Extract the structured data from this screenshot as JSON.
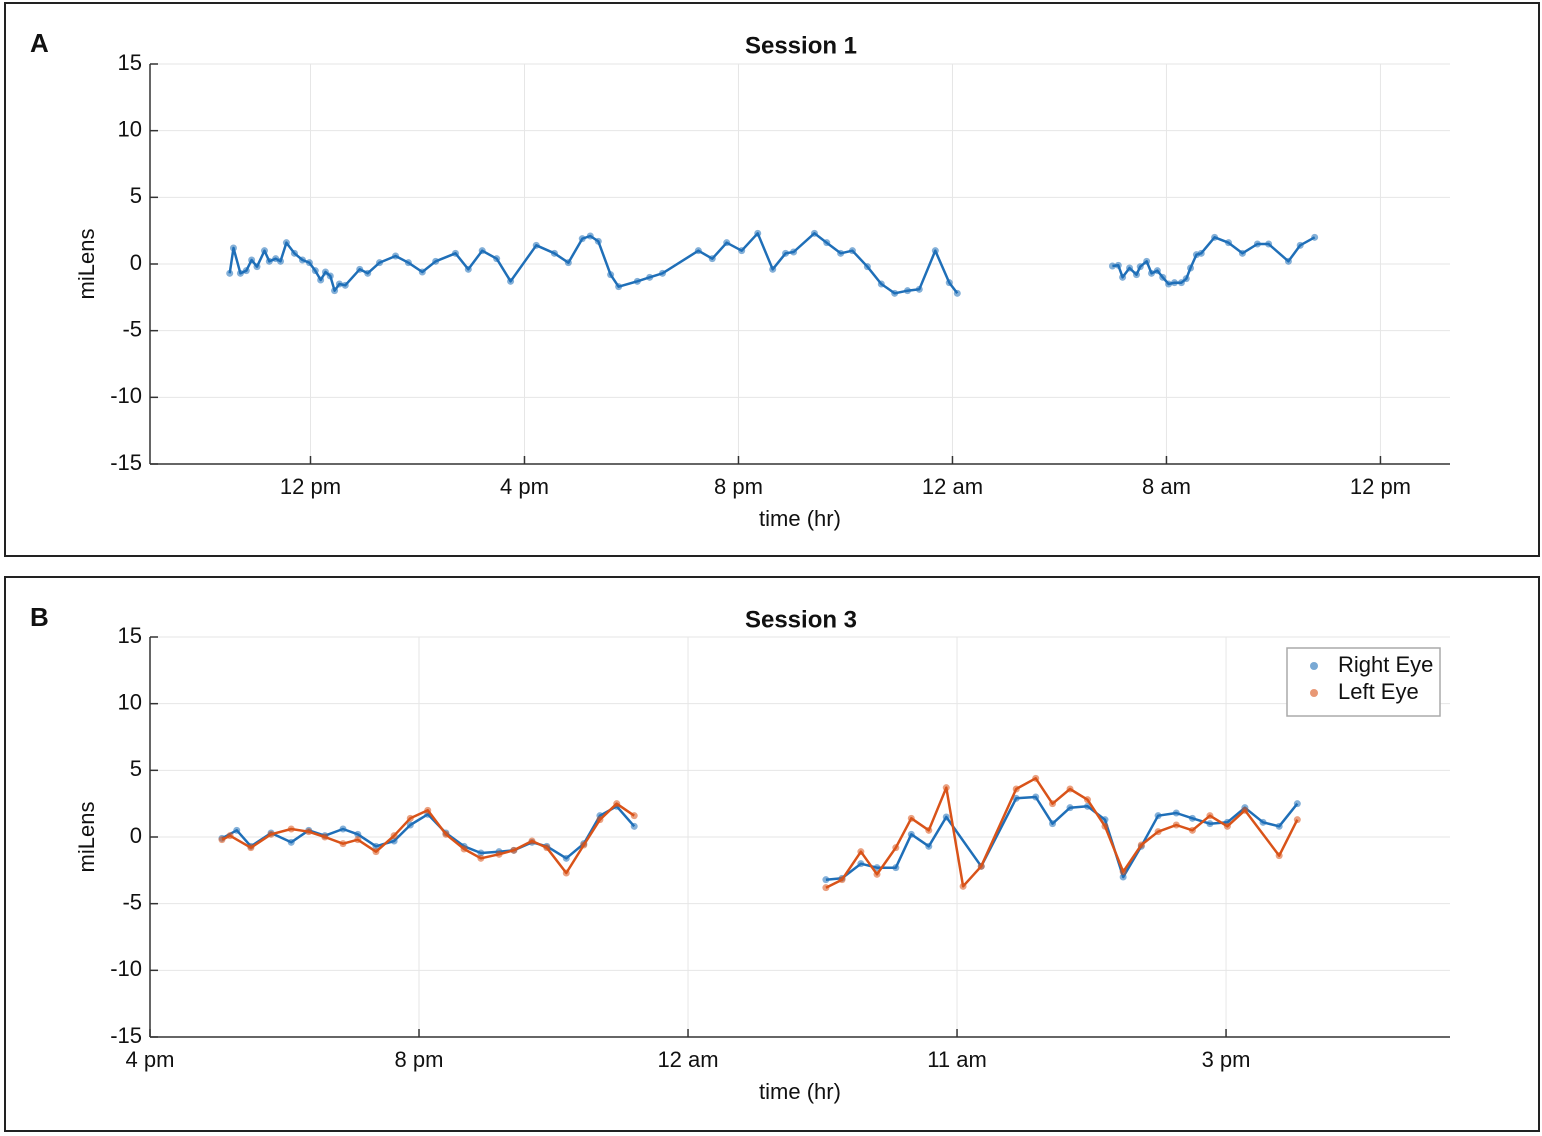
{
  "chart_data": [
    {
      "type": "line",
      "panel_label": "A",
      "title": "Session 1",
      "xlabel": "time (hr)",
      "ylabel": "miLens",
      "xlim": [
        9,
        33.3
      ],
      "ylim": [
        -15,
        15
      ],
      "xticks": [
        {
          "value": 12,
          "label": "12 pm"
        },
        {
          "value": 16,
          "label": "4 pm"
        },
        {
          "value": 20,
          "label": "8 pm"
        },
        {
          "value": 24,
          "label": "12 am"
        },
        {
          "value": 28,
          "label": "8 am"
        },
        {
          "value": 32,
          "label": "12 pm"
        }
      ],
      "yticks": [
        -15,
        -10,
        -5,
        0,
        5,
        10,
        15
      ],
      "grid": true,
      "series": [
        {
          "color": "#1f6fb8",
          "x": [
            10.49,
            10.56,
            10.69,
            10.8,
            10.9,
            11.0,
            11.14,
            11.23,
            11.35,
            11.44,
            11.55,
            11.7,
            11.85,
            11.98,
            12.09,
            12.19,
            12.28,
            12.37,
            12.45,
            12.54,
            12.65,
            12.92,
            13.07,
            13.29,
            13.59,
            13.83,
            14.09,
            14.34,
            14.71,
            14.95,
            15.21,
            15.48,
            15.74,
            16.22,
            16.56,
            16.82,
            17.08,
            17.23,
            17.38,
            17.61,
            17.76,
            18.11,
            18.34,
            18.58,
            19.25,
            19.51,
            19.78,
            20.06,
            20.36,
            20.64,
            20.88,
            21.03,
            21.42,
            21.65,
            21.91,
            22.13,
            22.41,
            22.67,
            22.92,
            23.16,
            23.38,
            23.68,
            23.94,
            24.09,
            null,
            26.99,
            27.1,
            27.18,
            27.31,
            27.44,
            27.51,
            27.63,
            27.72,
            27.83,
            27.93,
            28.04,
            28.15,
            28.28,
            28.37,
            28.45,
            28.56,
            28.65,
            28.9,
            29.16,
            29.42,
            29.7,
            29.91,
            30.28,
            30.5,
            30.77
          ],
          "values": [
            -0.7,
            1.2,
            -0.7,
            -0.5,
            0.3,
            -0.2,
            1.0,
            0.2,
            0.4,
            0.2,
            1.6,
            0.8,
            0.3,
            0.1,
            -0.5,
            -1.2,
            -0.6,
            -0.9,
            -2.0,
            -1.5,
            -1.6,
            -0.4,
            -0.7,
            0.1,
            0.6,
            0.1,
            -0.6,
            0.2,
            0.8,
            -0.4,
            1.0,
            0.4,
            -1.3,
            1.4,
            0.8,
            0.1,
            1.9,
            2.1,
            1.7,
            -0.8,
            -1.7,
            -1.3,
            -1.0,
            -0.7,
            1.0,
            0.4,
            1.6,
            1.0,
            2.3,
            -0.4,
            0.8,
            0.9,
            2.3,
            1.6,
            0.8,
            1.0,
            -0.2,
            -1.5,
            -2.2,
            -2.0,
            -1.9,
            1.0,
            -1.4,
            -2.2,
            null,
            -0.15,
            -0.1,
            -1.0,
            -0.3,
            -0.8,
            -0.2,
            0.2,
            -0.7,
            -0.5,
            -1.0,
            -1.5,
            -1.4,
            -1.4,
            -1.1,
            -0.3,
            0.7,
            0.8,
            2.0,
            1.6,
            0.8,
            1.5,
            1.5,
            0.2,
            1.4,
            2.0
          ]
        }
      ]
    },
    {
      "type": "line",
      "panel_label": "B",
      "title": "Session 3",
      "xlabel": "time (hr)",
      "ylabel": "miLens",
      "xlim": [
        16,
        35.33
      ],
      "ylim": [
        -15,
        15
      ],
      "xticks": [
        {
          "value": 16,
          "label": "4 pm"
        },
        {
          "value": 20,
          "label": "8 pm"
        },
        {
          "value": 24,
          "label": "12 am"
        },
        {
          "value": 28,
          "label": "11 am"
        },
        {
          "value": 32,
          "label": "3 pm"
        }
      ],
      "yticks": [
        -15,
        -10,
        -5,
        0,
        5,
        10,
        15
      ],
      "grid": true,
      "legend": "upper right",
      "series": [
        {
          "name": "Right Eye",
          "color": "#1f6fb8",
          "x": [
            17.07,
            17.29,
            17.5,
            17.8,
            18.1,
            18.36,
            18.6,
            18.87,
            19.09,
            19.36,
            19.63,
            19.87,
            20.13,
            20.4,
            20.67,
            20.92,
            21.19,
            21.41,
            21.68,
            21.9,
            22.19,
            22.45,
            22.69,
            22.94,
            23.2,
            null,
            26.05,
            26.29,
            26.57,
            26.81,
            27.09,
            27.32,
            27.58,
            27.84,
            28.36,
            28.88,
            29.17,
            29.42,
            29.68,
            29.94,
            30.2,
            30.47,
            30.74,
            30.99,
            31.26,
            31.5,
            31.76,
            32.02,
            32.28,
            32.55,
            32.79,
            33.06
          ],
          "values": [
            -0.1,
            0.5,
            -0.7,
            0.3,
            -0.4,
            0.5,
            0.1,
            0.6,
            0.2,
            -0.7,
            -0.3,
            0.9,
            1.7,
            0.3,
            -0.7,
            -1.2,
            -1.1,
            -1.0,
            -0.4,
            -0.7,
            -1.6,
            -0.5,
            1.6,
            2.3,
            0.8,
            null,
            -3.2,
            -3.1,
            -2.0,
            -2.3,
            -2.3,
            0.2,
            -0.7,
            1.5,
            -2.2,
            2.9,
            3.0,
            1.0,
            2.2,
            2.3,
            1.3,
            -3.0,
            -0.7,
            1.6,
            1.8,
            1.4,
            1.0,
            1.1,
            2.2,
            1.1,
            0.8,
            2.5
          ]
        },
        {
          "name": "Left Eye",
          "color": "#d95319",
          "x": [
            17.07,
            17.19,
            17.5,
            17.8,
            18.1,
            18.36,
            18.6,
            18.87,
            19.09,
            19.36,
            19.63,
            19.87,
            20.13,
            20.4,
            20.67,
            20.92,
            21.19,
            21.41,
            21.68,
            21.9,
            22.19,
            22.45,
            22.69,
            22.94,
            23.2,
            null,
            26.05,
            26.29,
            26.57,
            26.81,
            27.09,
            27.32,
            27.58,
            27.84,
            28.09,
            28.36,
            28.88,
            29.17,
            29.42,
            29.68,
            29.94,
            30.2,
            30.47,
            30.74,
            30.99,
            31.26,
            31.5,
            31.76,
            32.02,
            32.28,
            32.79,
            33.06
          ],
          "values": [
            -0.2,
            0.1,
            -0.8,
            0.2,
            0.6,
            0.4,
            0.0,
            -0.5,
            -0.2,
            -1.1,
            0.1,
            1.4,
            2.0,
            0.2,
            -0.9,
            -1.6,
            -1.3,
            -1.0,
            -0.3,
            -0.8,
            -2.7,
            -0.6,
            1.3,
            2.5,
            1.6,
            null,
            -3.8,
            -3.2,
            -1.1,
            -2.8,
            -0.8,
            1.4,
            0.5,
            3.7,
            -3.7,
            -2.2,
            3.6,
            4.4,
            2.5,
            3.6,
            2.8,
            0.8,
            -2.6,
            -0.6,
            0.4,
            0.9,
            0.5,
            1.6,
            0.8,
            2.0,
            -1.4,
            1.3
          ]
        }
      ]
    }
  ]
}
